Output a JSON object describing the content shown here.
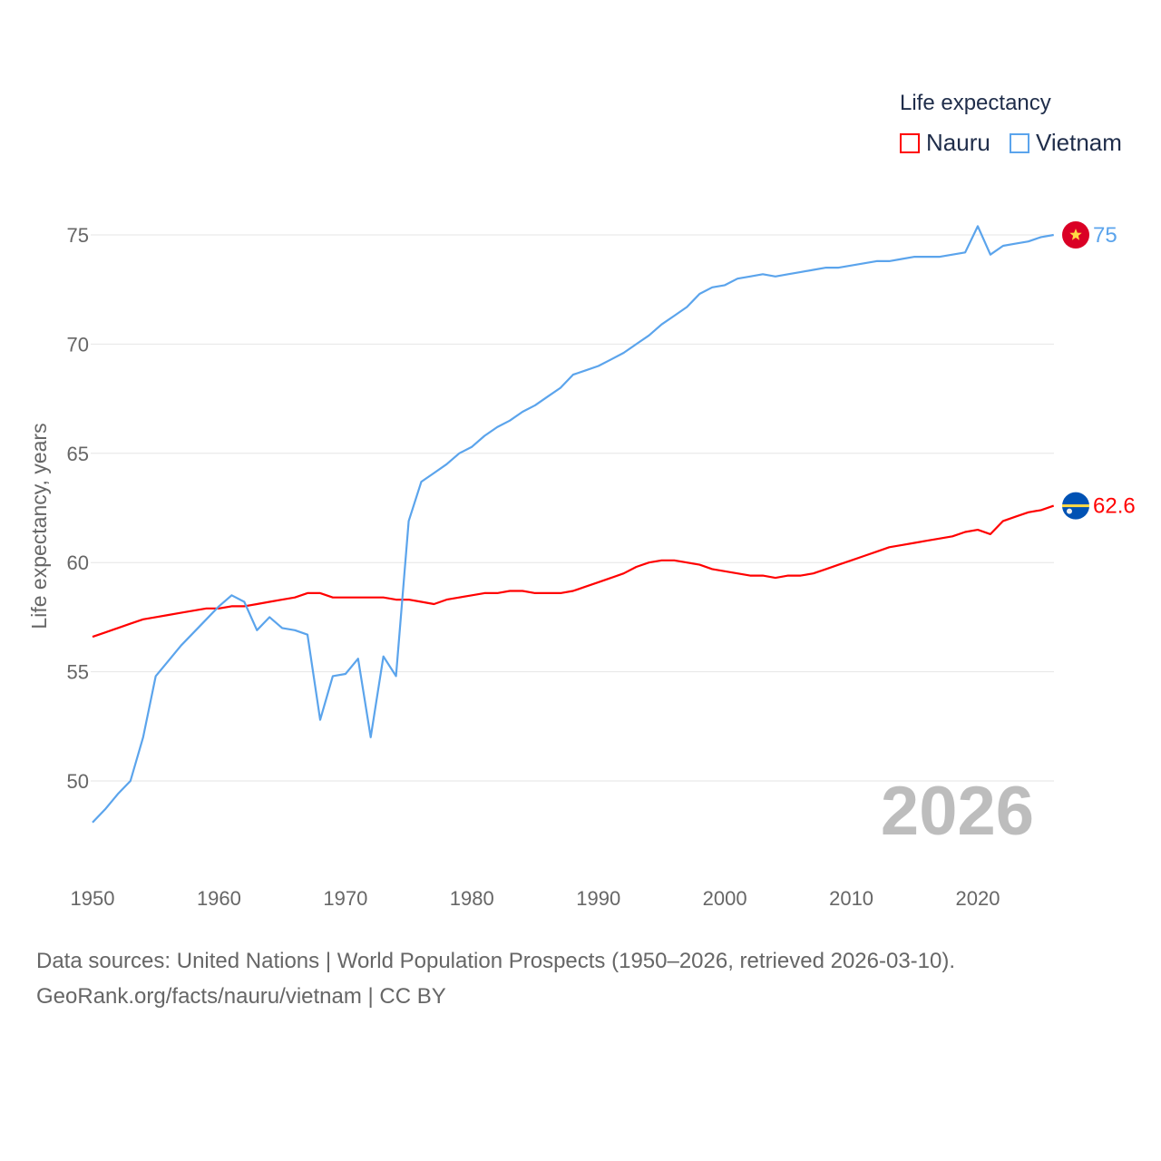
{
  "chart_data": {
    "type": "line",
    "title": "Life expectancy",
    "xlabel": "",
    "ylabel": "Life expectancy, years",
    "xlim": [
      1950,
      2026
    ],
    "ylim": [
      47.5,
      77
    ],
    "xticks": [
      "1950",
      "1960",
      "1970",
      "1980",
      "1990",
      "2000",
      "2010",
      "2020"
    ],
    "yticks": [
      "50",
      "55",
      "60",
      "65",
      "70",
      "75"
    ],
    "grid": true,
    "legend_position": "top-right",
    "year_label": "2026",
    "x": [
      1950,
      1951,
      1952,
      1953,
      1954,
      1955,
      1956,
      1957,
      1958,
      1959,
      1960,
      1961,
      1962,
      1963,
      1964,
      1965,
      1966,
      1967,
      1968,
      1969,
      1970,
      1971,
      1972,
      1973,
      1974,
      1975,
      1976,
      1977,
      1978,
      1979,
      1980,
      1981,
      1982,
      1983,
      1984,
      1985,
      1986,
      1987,
      1988,
      1989,
      1990,
      1991,
      1992,
      1993,
      1994,
      1995,
      1996,
      1997,
      1998,
      1999,
      2000,
      2001,
      2002,
      2003,
      2004,
      2005,
      2006,
      2007,
      2008,
      2009,
      2010,
      2011,
      2012,
      2013,
      2014,
      2015,
      2016,
      2017,
      2018,
      2019,
      2020,
      2021,
      2022,
      2023,
      2024,
      2025,
      2026
    ],
    "series": [
      {
        "name": "Nauru",
        "color": "#ff0000",
        "end_label": "62.6",
        "values": [
          56.6,
          56.8,
          57.0,
          57.2,
          57.4,
          57.5,
          57.6,
          57.7,
          57.8,
          57.9,
          57.9,
          58.0,
          58.0,
          58.1,
          58.2,
          58.3,
          58.4,
          58.6,
          58.6,
          58.4,
          58.4,
          58.4,
          58.4,
          58.4,
          58.3,
          58.3,
          58.2,
          58.1,
          58.3,
          58.4,
          58.5,
          58.6,
          58.6,
          58.7,
          58.7,
          58.6,
          58.6,
          58.6,
          58.7,
          58.9,
          59.1,
          59.3,
          59.5,
          59.8,
          60.0,
          60.1,
          60.1,
          60.0,
          59.9,
          59.7,
          59.6,
          59.5,
          59.4,
          59.4,
          59.3,
          59.4,
          59.4,
          59.5,
          59.7,
          59.9,
          60.1,
          60.3,
          60.5,
          60.7,
          60.8,
          60.9,
          61.0,
          61.1,
          61.2,
          61.4,
          61.5,
          61.3,
          61.9,
          62.1,
          62.3,
          62.4,
          62.6
        ]
      },
      {
        "name": "Vietnam",
        "color": "#5ba4ec",
        "end_label": "75",
        "values": [
          48.1,
          48.7,
          49.4,
          50.0,
          52.0,
          54.8,
          55.5,
          56.2,
          56.8,
          57.4,
          58.0,
          58.5,
          58.2,
          56.9,
          57.5,
          57.0,
          56.9,
          56.7,
          52.8,
          54.8,
          54.9,
          55.6,
          52.0,
          55.7,
          54.8,
          61.9,
          63.7,
          64.1,
          64.5,
          65.0,
          65.3,
          65.8,
          66.2,
          66.5,
          66.9,
          67.2,
          67.6,
          68.0,
          68.6,
          68.8,
          69.0,
          69.3,
          69.6,
          70.0,
          70.4,
          70.9,
          71.3,
          71.7,
          72.3,
          72.6,
          72.7,
          73.0,
          73.1,
          73.2,
          73.1,
          73.2,
          73.3,
          73.4,
          73.5,
          73.5,
          73.6,
          73.7,
          73.8,
          73.8,
          73.9,
          74.0,
          74.0,
          74.0,
          74.1,
          74.2,
          75.4,
          74.1,
          74.5,
          74.6,
          74.7,
          74.9,
          75.0
        ]
      }
    ]
  },
  "legend": {
    "title": "Life expectancy",
    "items": [
      "Nauru",
      "Vietnam"
    ]
  },
  "footer": {
    "line1": "Data sources: United Nations | World Population Prospects (1950–2026, retrieved 2026-03-10).",
    "line2": "GeoRank.org/facts/nauru/vietnam | CC BY"
  }
}
